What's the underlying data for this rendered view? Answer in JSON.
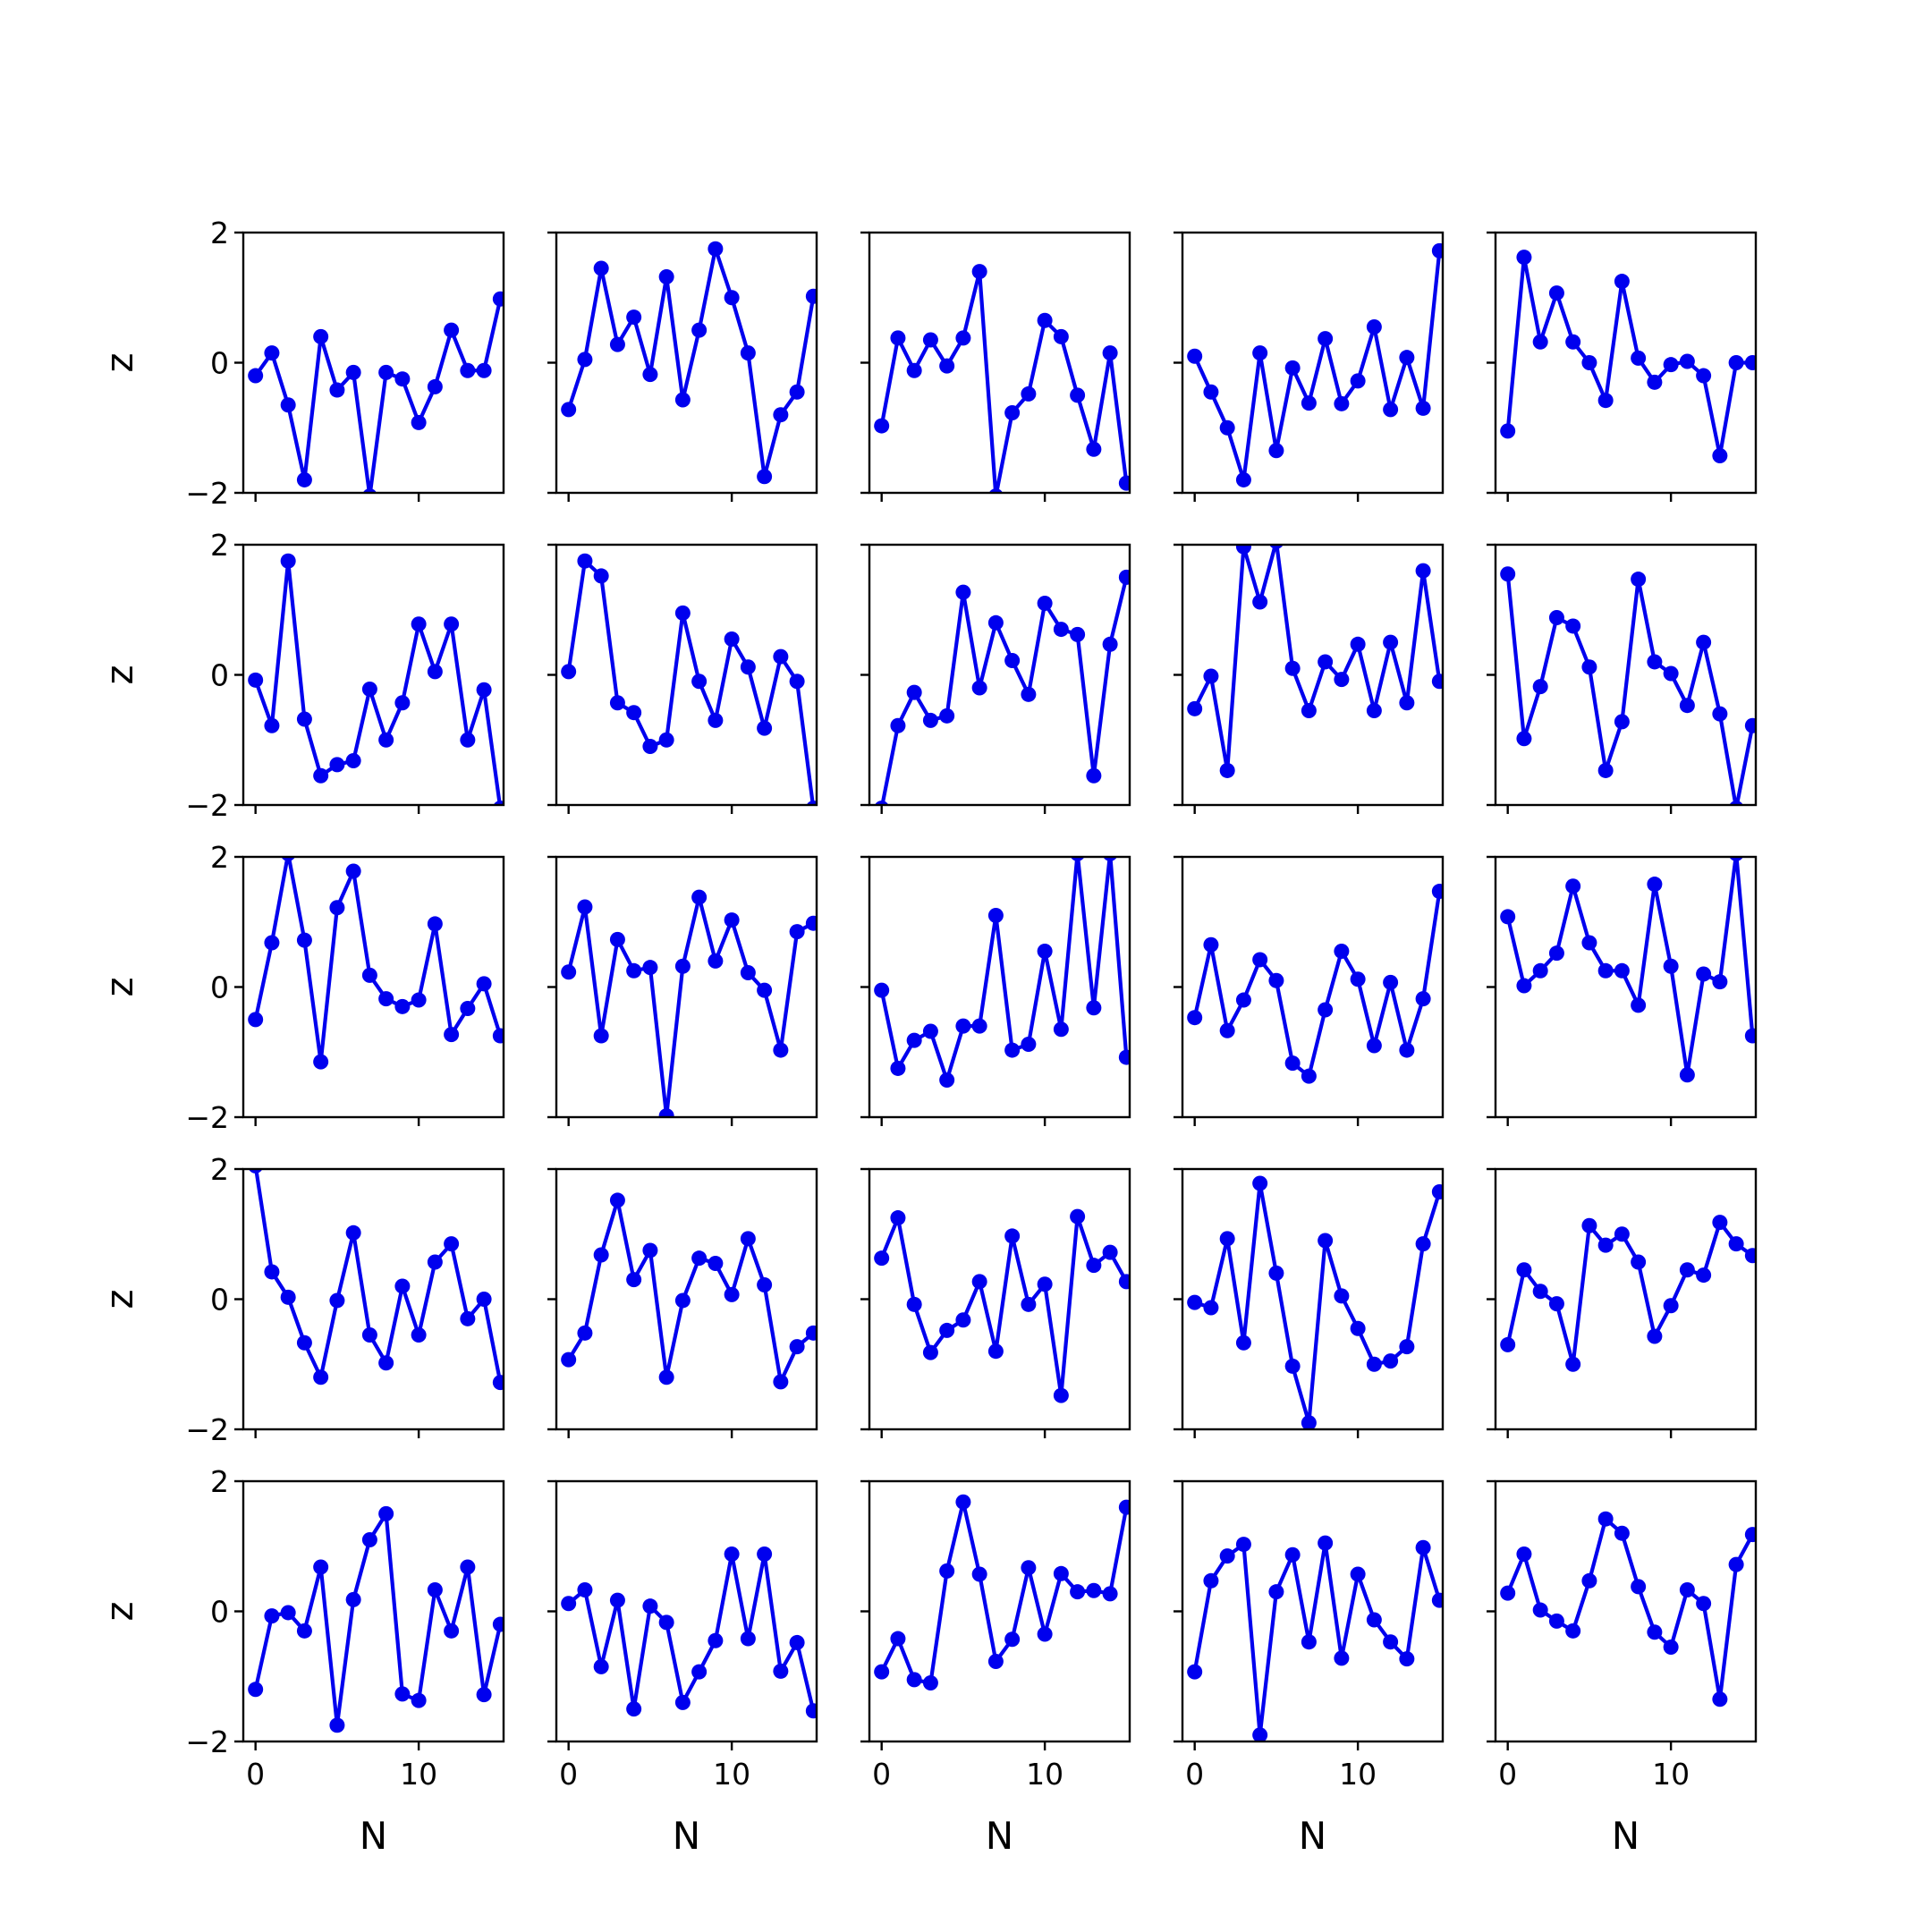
{
  "chart_data": {
    "type": "line",
    "layout": {
      "rows": 5,
      "cols": 5
    },
    "xlabel": "N",
    "ylabel": "z",
    "xlim": [
      -0.75,
      15.2
    ],
    "ylim": [
      -2,
      2
    ],
    "xticks": [
      0,
      10
    ],
    "xtick_labels": [
      "0",
      "10"
    ],
    "yticks": [
      -2,
      0,
      2
    ],
    "ytick_labels": [
      "−2",
      "0",
      "2"
    ],
    "x": [
      0,
      1,
      2,
      3,
      4,
      5,
      6,
      7,
      8,
      9,
      10,
      11,
      12,
      13,
      14,
      15
    ],
    "color": "#0000ee",
    "marker": "circle",
    "grid": false,
    "panels": [
      {
        "values": [
          -0.2,
          0.15,
          -0.65,
          -1.8,
          0.4,
          -0.42,
          -0.15,
          -2.05,
          -0.15,
          -0.25,
          -0.92,
          -0.37,
          0.5,
          -0.12,
          -0.12,
          0.98
        ]
      },
      {
        "values": [
          -0.72,
          0.05,
          1.45,
          0.28,
          0.7,
          -0.18,
          1.32,
          -0.57,
          0.5,
          1.75,
          1.0,
          0.15,
          -1.75,
          -0.8,
          -0.45,
          1.02
        ]
      },
      {
        "values": [
          -0.97,
          0.38,
          -0.12,
          0.35,
          -0.05,
          0.38,
          1.4,
          -2.05,
          -0.77,
          -0.48,
          0.65,
          0.4,
          -0.5,
          -1.33,
          0.15,
          -1.85
        ]
      },
      {
        "values": [
          0.1,
          -0.45,
          -1.0,
          -1.8,
          0.15,
          -1.35,
          -0.08,
          -0.62,
          0.37,
          -0.63,
          -0.28,
          0.55,
          -0.72,
          0.08,
          -0.7,
          1.72
        ]
      },
      {
        "values": [
          -1.05,
          1.62,
          0.32,
          1.07,
          0.32,
          0.0,
          -0.58,
          1.25,
          0.07,
          -0.3,
          -0.03,
          0.02,
          -0.2,
          -1.43,
          0.0,
          0.0
        ]
      },
      {
        "values": [
          -0.08,
          -0.78,
          1.75,
          -0.68,
          -1.55,
          -1.38,
          -1.32,
          -0.22,
          -1.0,
          -0.43,
          0.78,
          0.05,
          0.78,
          -1.0,
          -0.23,
          -2.05
        ]
      },
      {
        "values": [
          0.05,
          1.75,
          1.52,
          -0.43,
          -0.58,
          -1.1,
          -1.0,
          0.95,
          -0.1,
          -0.7,
          0.55,
          0.12,
          -0.82,
          0.28,
          -0.1,
          -2.05
        ]
      },
      {
        "values": [
          -2.05,
          -0.78,
          -0.27,
          -0.7,
          -0.63,
          1.27,
          -0.2,
          0.8,
          0.22,
          -0.3,
          1.1,
          0.7,
          0.62,
          -1.55,
          0.47,
          1.5
        ]
      },
      {
        "values": [
          -0.52,
          -0.02,
          -1.47,
          1.97,
          1.12,
          2.05,
          0.1,
          -0.55,
          0.2,
          -0.07,
          0.47,
          -0.55,
          0.5,
          -0.43,
          1.6,
          -0.1
        ]
      },
      {
        "values": [
          1.55,
          -0.98,
          -0.18,
          0.88,
          0.75,
          0.12,
          -1.47,
          -0.72,
          1.47,
          0.2,
          0.02,
          -0.47,
          0.5,
          -0.6,
          -2.05,
          -0.78
        ]
      },
      {
        "values": [
          -0.5,
          0.68,
          2.05,
          0.72,
          -1.15,
          1.22,
          1.78,
          0.18,
          -0.18,
          -0.3,
          -0.2,
          0.97,
          -0.73,
          -0.33,
          0.05,
          -0.75
        ]
      },
      {
        "values": [
          0.23,
          1.23,
          -0.75,
          0.73,
          0.25,
          0.3,
          -1.98,
          0.32,
          1.38,
          0.4,
          1.03,
          0.22,
          -0.05,
          -0.97,
          0.85,
          0.98
        ]
      },
      {
        "values": [
          -0.05,
          -1.25,
          -0.82,
          -0.68,
          -1.43,
          -0.6,
          -0.6,
          1.1,
          -0.97,
          -0.88,
          0.55,
          -0.65,
          2.05,
          -0.32,
          2.05,
          -1.08
        ]
      },
      {
        "values": [
          -0.47,
          0.65,
          -0.67,
          -0.2,
          0.42,
          0.1,
          -1.17,
          -1.37,
          -0.35,
          0.55,
          0.12,
          -0.9,
          0.07,
          -0.97,
          -0.18,
          1.47
        ]
      },
      {
        "values": [
          1.08,
          0.02,
          0.25,
          0.52,
          1.55,
          0.68,
          0.25,
          0.25,
          -0.28,
          1.58,
          0.32,
          -1.35,
          0.2,
          0.08,
          2.05,
          -0.75
        ]
      },
      {
        "values": [
          2.05,
          0.42,
          0.03,
          -0.67,
          -1.2,
          -0.02,
          1.02,
          -0.55,
          -0.98,
          0.2,
          -0.55,
          0.57,
          0.85,
          -0.3,
          0.0,
          -1.28
        ]
      },
      {
        "values": [
          -0.93,
          -0.52,
          0.68,
          1.52,
          0.3,
          0.75,
          -1.2,
          -0.02,
          0.63,
          0.55,
          0.07,
          0.93,
          0.22,
          -1.27,
          -0.73,
          -0.52
        ]
      },
      {
        "values": [
          0.63,
          1.25,
          -0.08,
          -0.82,
          -0.48,
          -0.32,
          0.27,
          -0.8,
          0.97,
          -0.08,
          0.23,
          -1.48,
          1.27,
          0.52,
          0.72,
          0.27
        ]
      },
      {
        "values": [
          -0.05,
          -0.13,
          0.93,
          -0.67,
          1.78,
          0.4,
          -1.03,
          -1.9,
          0.9,
          0.05,
          -0.45,
          -1.0,
          -0.95,
          -0.73,
          0.85,
          1.65
        ]
      },
      {
        "values": [
          -0.7,
          0.45,
          0.12,
          -0.07,
          -1.0,
          1.13,
          0.83,
          1.0,
          0.57,
          -0.57,
          -0.1,
          0.45,
          0.37,
          1.18,
          0.85,
          0.67
        ]
      },
      {
        "values": [
          -1.2,
          -0.07,
          -0.02,
          -0.3,
          0.68,
          -1.75,
          0.18,
          1.1,
          1.5,
          -1.27,
          -1.37,
          0.33,
          -0.3,
          0.68,
          -1.28,
          -0.2
        ]
      },
      {
        "values": [
          0.12,
          0.33,
          -0.85,
          0.17,
          -1.5,
          0.08,
          -0.17,
          -1.4,
          -0.93,
          -0.45,
          0.88,
          -0.42,
          0.88,
          -0.92,
          -0.48,
          -1.53
        ]
      },
      {
        "values": [
          -0.93,
          -0.42,
          -1.05,
          -1.1,
          0.62,
          1.68,
          0.57,
          -0.77,
          -0.43,
          0.67,
          -0.35,
          0.58,
          0.3,
          0.32,
          0.27,
          1.6
        ]
      },
      {
        "values": [
          -0.93,
          0.47,
          0.85,
          1.03,
          -1.9,
          0.3,
          0.87,
          -0.47,
          1.05,
          -0.72,
          0.57,
          -0.13,
          -0.47,
          -0.73,
          0.98,
          0.17
        ]
      },
      {
        "values": [
          0.28,
          0.88,
          0.02,
          -0.15,
          -0.3,
          0.47,
          1.42,
          1.2,
          0.38,
          -0.32,
          -0.55,
          0.33,
          0.12,
          -1.35,
          0.72,
          1.18
        ]
      }
    ]
  }
}
